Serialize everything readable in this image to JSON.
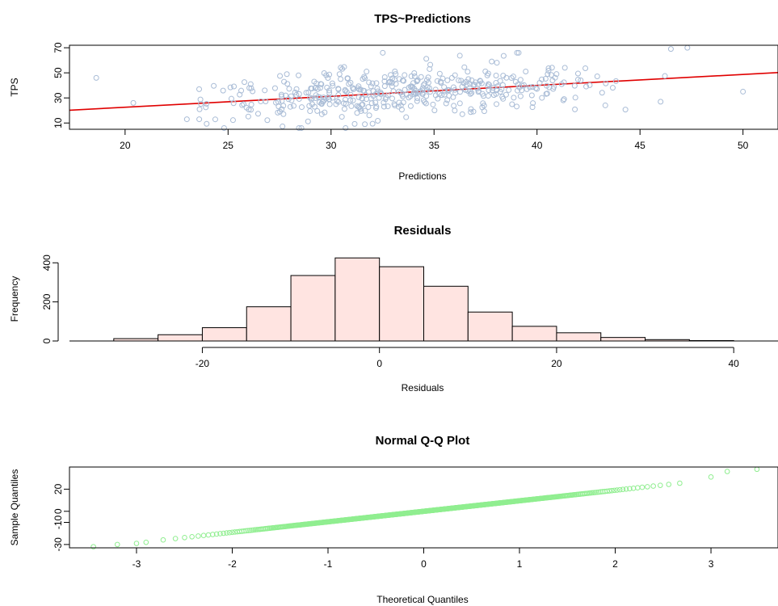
{
  "chart_data": [
    {
      "type": "scatter",
      "title": "TPS~Predictions",
      "xlabel": "Predictions",
      "ylabel": "TPS",
      "xlim": [
        17.3,
        51.7
      ],
      "ylim": [
        5,
        72
      ],
      "xticks": [
        20,
        25,
        30,
        35,
        40,
        45,
        50
      ],
      "yticks": [
        10,
        30,
        50,
        70
      ],
      "point_color": "#a9bcd6",
      "fit_line": {
        "color": "#e00000",
        "x": [
          17.3,
          51.7
        ],
        "y": [
          20.2,
          50.2
        ]
      },
      "point_count_approx": 450,
      "highlighted_points": [
        [
          18.6,
          46
        ],
        [
          20.4,
          26
        ],
        [
          23,
          13
        ],
        [
          23.6,
          13
        ],
        [
          46.5,
          69
        ],
        [
          47.3,
          70
        ],
        [
          50,
          35
        ],
        [
          46,
          27
        ]
      ]
    },
    {
      "type": "bar",
      "subtype": "histogram",
      "title": "Residuals",
      "xlabel": "Residuals",
      "ylabel": "Frequency",
      "xlim": [
        -35,
        45
      ],
      "ylim": [
        0,
        430
      ],
      "xticks": [
        -20,
        0,
        20,
        40
      ],
      "yticks": [
        0,
        200,
        400
      ],
      "bar_color": "#ffe4e1",
      "bins": [
        {
          "from": -30,
          "to": -25,
          "count": 12
        },
        {
          "from": -25,
          "to": -20,
          "count": 32
        },
        {
          "from": -20,
          "to": -15,
          "count": 68
        },
        {
          "from": -15,
          "to": -10,
          "count": 175
        },
        {
          "from": -10,
          "to": -5,
          "count": 335
        },
        {
          "from": -5,
          "to": 0,
          "count": 425
        },
        {
          "from": 0,
          "to": 5,
          "count": 380
        },
        {
          "from": 5,
          "to": 10,
          "count": 280
        },
        {
          "from": 10,
          "to": 15,
          "count": 148
        },
        {
          "from": 15,
          "to": 20,
          "count": 75
        },
        {
          "from": 20,
          "to": 25,
          "count": 42
        },
        {
          "from": 25,
          "to": 30,
          "count": 18
        },
        {
          "from": 30,
          "to": 35,
          "count": 7
        },
        {
          "from": 35,
          "to": 40,
          "count": 2
        }
      ]
    },
    {
      "type": "scatter",
      "subtype": "qq",
      "title": "Normal Q-Q Plot",
      "xlabel": "Theoretical Quantiles",
      "ylabel": "Sample Quantiles",
      "xlim": [
        -3.7,
        3.7
      ],
      "ylim": [
        -33,
        40
      ],
      "xticks": [
        -3,
        -2,
        -1,
        0,
        1,
        2,
        3
      ],
      "yticks": [
        -30,
        -10,
        0,
        20
      ],
      "point_color": "#90ee90",
      "point_count_approx": 2000,
      "residual_sd": 9.5,
      "tail_points": [
        [
          -3.45,
          -32
        ],
        [
          -3.2,
          -30
        ],
        [
          -3.0,
          -29
        ],
        [
          -2.9,
          -28
        ],
        [
          3.0,
          31
        ],
        [
          3.17,
          36
        ],
        [
          3.48,
          38
        ]
      ]
    }
  ]
}
